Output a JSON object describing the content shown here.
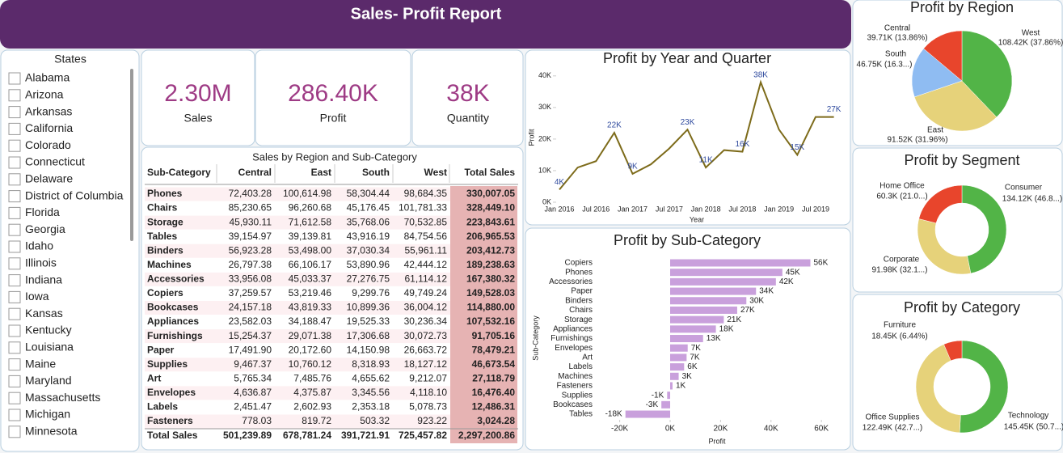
{
  "header": {
    "title": "Sales- Profit Report"
  },
  "slicer": {
    "title": "States",
    "items": [
      "Alabama",
      "Arizona",
      "Arkansas",
      "California",
      "Colorado",
      "Connecticut",
      "Delaware",
      "District of Columbia",
      "Florida",
      "Georgia",
      "Idaho",
      "Illinois",
      "Indiana",
      "Iowa",
      "Kansas",
      "Kentucky",
      "Louisiana",
      "Maine",
      "Maryland",
      "Massachusetts",
      "Michigan",
      "Minnesota"
    ]
  },
  "kpis": [
    {
      "value": "2.30M",
      "label": "Sales"
    },
    {
      "value": "286.40K",
      "label": "Profit"
    },
    {
      "value": "38K",
      "label": "Quantity"
    }
  ],
  "table": {
    "title": "Sales by Region and Sub-Category",
    "columns": [
      "Sub-Category",
      "Central",
      "East",
      "South",
      "West",
      "Total Sales"
    ],
    "rows": [
      [
        "Phones",
        "72,403.28",
        "100,614.98",
        "58,304.44",
        "98,684.35",
        "330,007.05"
      ],
      [
        "Chairs",
        "85,230.65",
        "96,260.68",
        "45,176.45",
        "101,781.33",
        "328,449.10"
      ],
      [
        "Storage",
        "45,930.11",
        "71,612.58",
        "35,768.06",
        "70,532.85",
        "223,843.61"
      ],
      [
        "Tables",
        "39,154.97",
        "39,139.81",
        "43,916.19",
        "84,754.56",
        "206,965.53"
      ],
      [
        "Binders",
        "56,923.28",
        "53,498.00",
        "37,030.34",
        "55,961.11",
        "203,412.73"
      ],
      [
        "Machines",
        "26,797.38",
        "66,106.17",
        "53,890.96",
        "42,444.12",
        "189,238.63"
      ],
      [
        "Accessories",
        "33,956.08",
        "45,033.37",
        "27,276.75",
        "61,114.12",
        "167,380.32"
      ],
      [
        "Copiers",
        "37,259.57",
        "53,219.46",
        "9,299.76",
        "49,749.24",
        "149,528.03"
      ],
      [
        "Bookcases",
        "24,157.18",
        "43,819.33",
        "10,899.36",
        "36,004.12",
        "114,880.00"
      ],
      [
        "Appliances",
        "23,582.03",
        "34,188.47",
        "19,525.33",
        "30,236.34",
        "107,532.16"
      ],
      [
        "Furnishings",
        "15,254.37",
        "29,071.38",
        "17,306.68",
        "30,072.73",
        "91,705.16"
      ],
      [
        "Paper",
        "17,491.90",
        "20,172.60",
        "14,150.98",
        "26,663.72",
        "78,479.21"
      ],
      [
        "Supplies",
        "9,467.37",
        "10,760.12",
        "8,318.93",
        "18,127.12",
        "46,673.54"
      ],
      [
        "Art",
        "5,765.34",
        "7,485.76",
        "4,655.62",
        "9,212.07",
        "27,118.79"
      ],
      [
        "Envelopes",
        "4,636.87",
        "4,375.87",
        "3,345.56",
        "4,118.10",
        "16,476.40"
      ],
      [
        "Labels",
        "2,451.47",
        "2,602.93",
        "2,353.18",
        "5,078.73",
        "12,486.31"
      ],
      [
        "Fasteners",
        "778.03",
        "819.72",
        "503.32",
        "923.22",
        "3,024.28"
      ]
    ],
    "total": [
      "Total Sales",
      "501,239.89",
      "678,781.24",
      "391,721.91",
      "725,457.82",
      "2,297,200.86"
    ]
  },
  "chart_data": [
    {
      "type": "line",
      "title": "Profit by Year and Quarter",
      "x_label": "Year",
      "y_label": "Profit",
      "categories": [
        "Jan 2016",
        null,
        "Jul 2016",
        null,
        "Jan 2017",
        null,
        "Jul 2017",
        null,
        "Jan 2018",
        null,
        "Jul 2018",
        null,
        "Jan 2019",
        null,
        "Jul 2019",
        null
      ],
      "values": [
        4000,
        11000,
        13000,
        22000,
        9000,
        12000,
        17000,
        23000,
        11000,
        16500,
        16000,
        38000,
        23000,
        15000,
        27000,
        27000
      ],
      "value_labels": [
        "4K",
        null,
        null,
        "22K",
        "9K",
        null,
        null,
        "23K",
        "11K",
        null,
        "16K",
        "38K",
        null,
        "15K",
        null,
        "27K"
      ],
      "color": "#7d6b1a",
      "label_color": "#2f4a9e",
      "ylim": [
        0,
        42000
      ],
      "yticks": [
        {
          "value": 0,
          "label": "0K"
        },
        {
          "value": 10000,
          "label": "10K"
        },
        {
          "value": 20000,
          "label": "20K"
        },
        {
          "value": 30000,
          "label": "30K"
        },
        {
          "value": 40000,
          "label": "40K"
        }
      ]
    },
    {
      "type": "bar",
      "orientation": "horizontal",
      "title": "Profit by Sub-Category",
      "x_label": "Profit",
      "y_label": "Sub-Category",
      "categories": [
        "Copiers",
        "Phones",
        "Accessories",
        "Paper",
        "Binders",
        "Chairs",
        "Storage",
        "Appliances",
        "Furnishings",
        "Envelopes",
        "Art",
        "Labels",
        "Machines",
        "Fasteners",
        "Supplies",
        "Bookcases",
        "Tables"
      ],
      "values": [
        55618,
        44516,
        41937,
        34054,
        30222,
        26590,
        21279,
        18138,
        13059,
        6964,
        6528,
        5546,
        3385,
        950,
        -1189,
        -3473,
        -17725
      ],
      "value_labels": [
        "56K",
        "45K",
        "42K",
        "34K",
        "30K",
        "27K",
        "21K",
        "18K",
        "13K",
        "7K",
        "7K",
        "6K",
        "3K",
        "1K",
        "-1K",
        "-3K",
        "-18K"
      ],
      "color": "#c9a0dc",
      "xlim": [
        -21000,
        62000
      ],
      "xticks": [
        {
          "value": -20000,
          "label": "-20K"
        },
        {
          "value": 0,
          "label": "0K"
        },
        {
          "value": 20000,
          "label": "20K"
        },
        {
          "value": 40000,
          "label": "40K"
        },
        {
          "value": 60000,
          "label": "60K"
        }
      ]
    },
    {
      "type": "pie",
      "title": "Profit by Region",
      "categories": [
        "West",
        "East",
        "South",
        "Central"
      ],
      "values": [
        108420,
        91520,
        46750,
        39710
      ],
      "value_labels": [
        "108.42K (37.86%)",
        "91.52K (31.96%)",
        "46.75K (16.3...)",
        "39.71K (13.86%)"
      ],
      "colors": [
        "#52b447",
        "#e6d27a",
        "#8fbcf2",
        "#e8452c"
      ]
    },
    {
      "type": "donut",
      "title": "Profit by Segment",
      "categories": [
        "Consumer",
        "Corporate",
        "Home Office"
      ],
      "values": [
        134120,
        91980,
        60300
      ],
      "value_labels": [
        "134.12K (46.8...)",
        "91.98K (32.1...)",
        "60.3K (21.0...)"
      ],
      "colors": [
        "#52b447",
        "#e6d27a",
        "#e8452c"
      ]
    },
    {
      "type": "donut",
      "title": "Profit by Category",
      "categories": [
        "Technology",
        "Office Supplies",
        "Furniture"
      ],
      "values": [
        145450,
        122490,
        18450
      ],
      "value_labels": [
        "145.45K (50.7...)",
        "122.49K (42.7...)",
        "18.45K (6.44%)"
      ],
      "colors": [
        "#52b447",
        "#e6d27a",
        "#e8452c"
      ]
    }
  ]
}
